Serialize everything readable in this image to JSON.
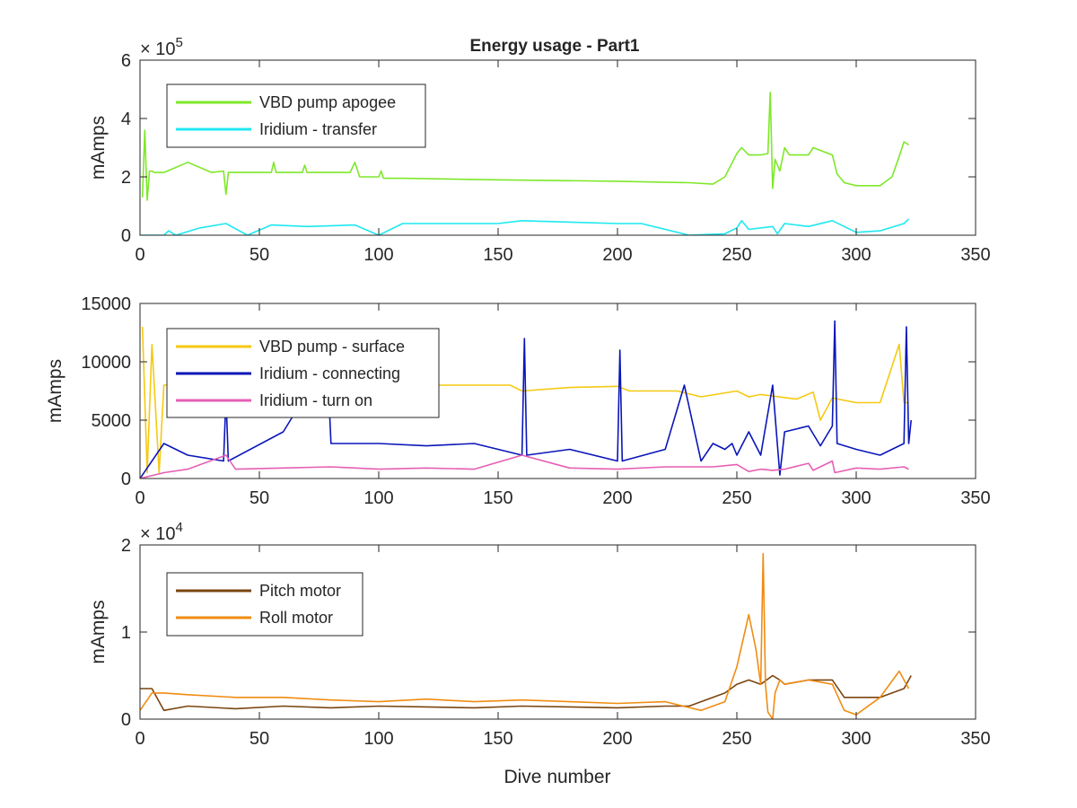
{
  "figure": {
    "title": "Energy usage - Part1",
    "xlabel": "Dive number"
  },
  "chart_data": [
    {
      "type": "line",
      "ylabel": "mAmps",
      "xlim": [
        0,
        350
      ],
      "ylim": [
        0,
        600000
      ],
      "xticks": [
        "0",
        "50",
        "100",
        "150",
        "200",
        "250",
        "300",
        "350"
      ],
      "yticks": [
        "0",
        "2",
        "4",
        "6"
      ],
      "ytick_values": [
        0,
        200000,
        400000,
        600000
      ],
      "exponent_label": "×10^5",
      "exponent_base": "× 10",
      "exponent_power": "5",
      "legend_position": "top-left",
      "series": [
        {
          "name": "VBD pump apogee",
          "color": "#7ee82a",
          "x": [
            1,
            2,
            3,
            4,
            5,
            6,
            10,
            20,
            30,
            35,
            36,
            37,
            40,
            55,
            56,
            57,
            68,
            69,
            70,
            88,
            90,
            92,
            100,
            101,
            102,
            110,
            150,
            200,
            230,
            240,
            245,
            250,
            252,
            255,
            260,
            263,
            264,
            265,
            266,
            268,
            270,
            272,
            280,
            282,
            290,
            292,
            295,
            300,
            310,
            315,
            318,
            320,
            322
          ],
          "y": [
            130000,
            360000,
            120000,
            220000,
            220000,
            215000,
            215000,
            250000,
            215000,
            220000,
            140000,
            215000,
            215000,
            215000,
            250000,
            215000,
            215000,
            240000,
            215000,
            215000,
            250000,
            200000,
            200000,
            220000,
            195000,
            195000,
            190000,
            185000,
            180000,
            175000,
            200000,
            280000,
            300000,
            275000,
            275000,
            280000,
            490000,
            160000,
            260000,
            220000,
            300000,
            275000,
            275000,
            300000,
            275000,
            210000,
            180000,
            170000,
            170000,
            200000,
            270000,
            320000,
            310000
          ]
        },
        {
          "name": "Iridium - transfer",
          "color": "#1ee8f0",
          "x": [
            0,
            10,
            12,
            15,
            25,
            36,
            45,
            55,
            70,
            90,
            100,
            110,
            130,
            150,
            160,
            180,
            200,
            210,
            230,
            245,
            250,
            252,
            255,
            265,
            267,
            270,
            280,
            290,
            300,
            310,
            320,
            322
          ],
          "y": [
            0,
            0,
            15000,
            0,
            25000,
            40000,
            0,
            35000,
            30000,
            35000,
            0,
            40000,
            40000,
            40000,
            50000,
            45000,
            40000,
            40000,
            0,
            5000,
            25000,
            50000,
            20000,
            30000,
            5000,
            40000,
            30000,
            50000,
            10000,
            15000,
            40000,
            55000
          ]
        }
      ]
    },
    {
      "type": "line",
      "ylabel": "mAmps",
      "xlim": [
        0,
        350
      ],
      "ylim": [
        0,
        15000
      ],
      "xticks": [
        "0",
        "50",
        "100",
        "150",
        "200",
        "250",
        "300",
        "350"
      ],
      "yticks": [
        "0",
        "5000",
        "10000",
        "15000"
      ],
      "ytick_values": [
        0,
        5000,
        10000,
        15000
      ],
      "legend_position": "top-left",
      "series": [
        {
          "name": "VBD pump - surface",
          "color": "#f5c912",
          "x": [
            1,
            3,
            5,
            8,
            10,
            20,
            40,
            60,
            80,
            100,
            120,
            140,
            155,
            160,
            180,
            200,
            205,
            225,
            235,
            250,
            255,
            260,
            275,
            282,
            285,
            290,
            300,
            310,
            318,
            320,
            322
          ],
          "y": [
            13000,
            500,
            11500,
            500,
            8000,
            8000,
            7000,
            7500,
            8000,
            7500,
            8000,
            8000,
            8000,
            7500,
            7800,
            7900,
            7500,
            7500,
            7000,
            7500,
            7000,
            7200,
            6800,
            7400,
            5000,
            6900,
            6500,
            6500,
            11500,
            6500,
            6500
          ]
        },
        {
          "name": "Iridium - connecting",
          "color": "#0a16b8",
          "x": [
            0,
            10,
            20,
            35,
            36,
            37,
            60,
            75,
            78,
            80,
            100,
            120,
            140,
            160,
            161,
            162,
            180,
            200,
            201,
            202,
            220,
            228,
            235,
            240,
            245,
            248,
            250,
            255,
            260,
            265,
            268,
            270,
            280,
            285,
            290,
            291,
            292,
            300,
            310,
            320,
            321,
            322,
            323
          ],
          "y": [
            0,
            3000,
            2000,
            1500,
            7000,
            1500,
            4000,
            9000,
            12000,
            3000,
            3000,
            2800,
            3000,
            2000,
            12000,
            2000,
            2500,
            1500,
            11000,
            1500,
            2500,
            8000,
            1500,
            3000,
            2500,
            3000,
            2000,
            4000,
            2000,
            8000,
            300,
            4000,
            4500,
            2800,
            4500,
            13500,
            3000,
            2500,
            2000,
            3000,
            13000,
            3000,
            5000
          ]
        },
        {
          "name": "Iridium - turn on",
          "color": "#e65fb4",
          "x": [
            0,
            10,
            20,
            36,
            40,
            60,
            80,
            100,
            120,
            140,
            160,
            180,
            200,
            220,
            240,
            250,
            255,
            260,
            265,
            270,
            280,
            282,
            290,
            291,
            300,
            310,
            320,
            322
          ],
          "y": [
            0,
            500,
            800,
            2000,
            800,
            900,
            1000,
            800,
            900,
            800,
            2000,
            900,
            800,
            1000,
            1000,
            1200,
            600,
            800,
            700,
            800,
            1300,
            700,
            1500,
            500,
            900,
            800,
            1000,
            800
          ]
        }
      ]
    },
    {
      "type": "line",
      "ylabel": "mAmps",
      "xlabel": "Dive number",
      "xlim": [
        0,
        350
      ],
      "ylim": [
        0,
        20000
      ],
      "xticks": [
        "0",
        "50",
        "100",
        "150",
        "200",
        "250",
        "300",
        "350"
      ],
      "yticks": [
        "0",
        "1",
        "2"
      ],
      "ytick_values": [
        0,
        10000,
        20000
      ],
      "exponent_label": "×10^4",
      "exponent_base": "× 10",
      "exponent_power": "4",
      "legend_position": "top-left",
      "series": [
        {
          "name": "Pitch motor",
          "color": "#7a4510",
          "x": [
            0,
            5,
            10,
            20,
            40,
            60,
            80,
            100,
            120,
            140,
            160,
            180,
            200,
            220,
            230,
            240,
            245,
            250,
            255,
            260,
            265,
            268,
            270,
            280,
            290,
            295,
            300,
            310,
            320,
            323
          ],
          "y": [
            3500,
            3500,
            1000,
            1500,
            1200,
            1500,
            1300,
            1500,
            1400,
            1300,
            1500,
            1400,
            1300,
            1500,
            1500,
            2500,
            3000,
            4000,
            4500,
            4000,
            5000,
            4500,
            4000,
            4500,
            4500,
            2500,
            2500,
            2500,
            3500,
            5000
          ]
        },
        {
          "name": "Roll motor",
          "color": "#f08c12",
          "x": [
            0,
            5,
            10,
            20,
            40,
            60,
            80,
            100,
            120,
            140,
            160,
            180,
            200,
            220,
            235,
            245,
            250,
            255,
            258,
            260,
            261,
            262,
            263,
            265,
            266,
            268,
            270,
            280,
            290,
            295,
            300,
            310,
            318,
            322
          ],
          "y": [
            1000,
            3000,
            3000,
            2800,
            2500,
            2500,
            2200,
            2000,
            2300,
            2000,
            2200,
            2000,
            1800,
            2000,
            1000,
            2000,
            6000,
            12000,
            8000,
            4000,
            19000,
            4000,
            800,
            0,
            3000,
            4500,
            4000,
            4500,
            4000,
            1000,
            500,
            2500,
            5500,
            3500
          ]
        }
      ]
    }
  ]
}
